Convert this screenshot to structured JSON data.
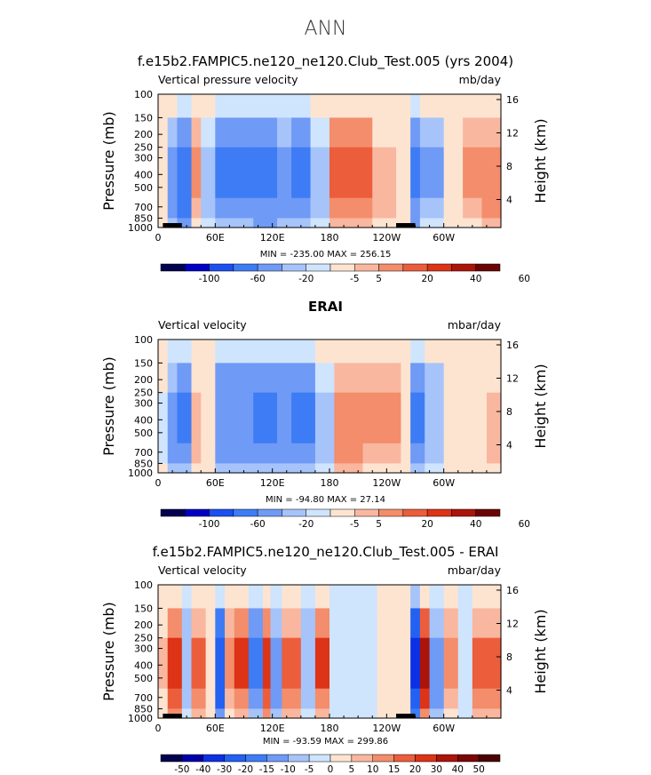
{
  "title": "ANN",
  "panels": [
    {
      "id": "model",
      "title": "f.e15b2.FAMPIC5.ne120_ne120.Club_Test.005 (yrs 2004)",
      "left_string": "Vertical pressure velocity",
      "units": "mb/day",
      "minmax": "MIN = -235.00   MAX = 256.15",
      "colorbar_labels": [
        "-100",
        "-60",
        "-20",
        "-5",
        "5",
        "20",
        "40",
        "60"
      ]
    },
    {
      "id": "obs",
      "title": "ERAI",
      "left_string": "Vertical velocity",
      "units": "mbar/day",
      "minmax": "MIN = -94.80   MAX =  27.14",
      "colorbar_labels": [
        "-100",
        "-60",
        "-20",
        "-5",
        "5",
        "20",
        "40",
        "60"
      ]
    },
    {
      "id": "diff",
      "title": "f.e15b2.FAMPIC5.ne120_ne120.Club_Test.005 - ERAI",
      "left_string": "Vertical velocity",
      "units": "mbar/day",
      "minmax": "MIN = -93.59   MAX = 299.86",
      "colorbar_labels": [
        "-50",
        "-40",
        "-30",
        "-20",
        "-15",
        "-10",
        "-5",
        "0",
        "5",
        "10",
        "15",
        "20",
        "30",
        "40",
        "50"
      ]
    }
  ],
  "axes": {
    "ylabel_left": "Pressure (mb)",
    "ylabel_right": "Height (km)",
    "pressure_ticks": [
      "100",
      "150",
      "200",
      "250",
      "300",
      "400",
      "500",
      "700",
      "850",
      "1000"
    ],
    "height_ticks": [
      "16",
      "12",
      "8",
      "4"
    ],
    "lon_ticks": [
      "0",
      "60E",
      "120E",
      "180",
      "120W",
      "60W"
    ]
  },
  "colors": {
    "model_obs_scale": [
      "#02024f",
      "#0000c4",
      "#1a50f0",
      "#3d7cf5",
      "#6f9af6",
      "#a6c4f9",
      "#cfe4fd",
      "#fde4d1",
      "#f9b79f",
      "#f38d6b",
      "#ec5d3c",
      "#dd3316",
      "#ac1409",
      "#6b0404"
    ],
    "diff_scale": [
      "#02024f",
      "#0000a8",
      "#0c31e4",
      "#2361f2",
      "#3d7cf5",
      "#6f9af6",
      "#a6c4f9",
      "#cfe4fd",
      "#fde4d1",
      "#f9b79f",
      "#f38d6b",
      "#ec5d3c",
      "#dd3316",
      "#ac1409",
      "#7a0606",
      "#4a0202"
    ]
  },
  "chart_data": [
    {
      "type": "heatmap",
      "title": "f.e15b2.FAMPIC5.ne120_ne120.Club_Test.005 (yrs 2004)",
      "field": "Vertical pressure velocity",
      "units": "mb/day",
      "x_range_deg": [
        0,
        360
      ],
      "y_range_mb": [
        1000,
        100
      ],
      "min": -235.0,
      "max": 256.15,
      "contour_levels": [
        -100,
        -80,
        -60,
        -40,
        -20,
        -10,
        -5,
        5,
        10,
        20,
        30,
        40,
        50,
        60
      ],
      "cells_lon_deg": [
        [
          0,
          10,
          -3
        ],
        [
          10,
          20,
          -30
        ],
        [
          20,
          35,
          -60
        ],
        [
          35,
          45,
          10
        ],
        [
          45,
          60,
          -15
        ],
        [
          60,
          100,
          -45
        ],
        [
          100,
          125,
          -55
        ],
        [
          125,
          140,
          -35
        ],
        [
          140,
          160,
          -50
        ],
        [
          160,
          180,
          -15
        ],
        [
          180,
          225,
          20
        ],
        [
          225,
          250,
          8
        ],
        [
          250,
          265,
          -3
        ],
        [
          265,
          275,
          -55
        ],
        [
          275,
          300,
          -25
        ],
        [
          300,
          320,
          -3
        ],
        [
          320,
          340,
          10
        ],
        [
          340,
          360,
          15
        ]
      ]
    },
    {
      "type": "heatmap",
      "title": "ERAI",
      "field": "Vertical velocity",
      "units": "mbar/day",
      "x_range_deg": [
        0,
        360
      ],
      "y_range_mb": [
        1000,
        100
      ],
      "min": -94.8,
      "max": 27.14,
      "contour_levels": [
        -100,
        -80,
        -60,
        -40,
        -20,
        -10,
        -5,
        5,
        10,
        20,
        30,
        40,
        50,
        60
      ],
      "cells_lon_deg": [
        [
          0,
          10,
          -8
        ],
        [
          10,
          20,
          -35
        ],
        [
          20,
          35,
          -45
        ],
        [
          35,
          45,
          8
        ],
        [
          45,
          60,
          -5
        ],
        [
          60,
          100,
          -40
        ],
        [
          100,
          125,
          -50
        ],
        [
          125,
          140,
          -40
        ],
        [
          140,
          165,
          -45
        ],
        [
          165,
          185,
          -15
        ],
        [
          185,
          215,
          15
        ],
        [
          215,
          255,
          10
        ],
        [
          255,
          265,
          -5
        ],
        [
          265,
          280,
          -45
        ],
        [
          280,
          300,
          -20
        ],
        [
          300,
          320,
          -5
        ],
        [
          320,
          345,
          -3
        ],
        [
          345,
          360,
          8
        ]
      ]
    },
    {
      "type": "heatmap",
      "title": "f.e15b2.FAMPIC5.ne120_ne120.Club_Test.005 - ERAI",
      "field": "Vertical velocity",
      "units": "mbar/day",
      "x_range_deg": [
        0,
        360
      ],
      "y_range_mb": [
        1000,
        100
      ],
      "min": -93.59,
      "max": 299.86,
      "contour_levels": [
        -50,
        -40,
        -30,
        -20,
        -15,
        -10,
        -5,
        0,
        5,
        10,
        15,
        20,
        30,
        40,
        50
      ],
      "cells_lon_deg": [
        [
          0,
          10,
          5
        ],
        [
          10,
          25,
          25
        ],
        [
          25,
          35,
          -10
        ],
        [
          35,
          50,
          15
        ],
        [
          50,
          60,
          2
        ],
        [
          60,
          70,
          -30
        ],
        [
          70,
          80,
          10
        ],
        [
          80,
          95,
          20
        ],
        [
          95,
          110,
          -20
        ],
        [
          110,
          118,
          25
        ],
        [
          118,
          130,
          -15
        ],
        [
          130,
          150,
          15
        ],
        [
          150,
          165,
          -10
        ],
        [
          165,
          180,
          20
        ],
        [
          180,
          230,
          -3
        ],
        [
          230,
          265,
          3
        ],
        [
          265,
          275,
          -40
        ],
        [
          275,
          285,
          30
        ],
        [
          285,
          300,
          -15
        ],
        [
          300,
          315,
          10
        ],
        [
          315,
          330,
          -5
        ],
        [
          330,
          360,
          15
        ]
      ]
    }
  ]
}
